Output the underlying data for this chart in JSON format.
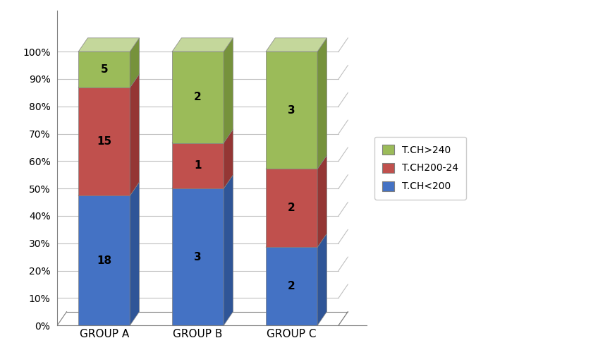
{
  "categories": [
    "GROUP A",
    "GROUP B",
    "GROUP C"
  ],
  "series": {
    "T.CH<200": [
      18,
      3,
      2
    ],
    "T.CH200-24": [
      15,
      1,
      2
    ],
    "T.CH>240": [
      5,
      2,
      3
    ]
  },
  "colors": {
    "T.CH<200": "#4472C4",
    "T.CH200-24": "#C0504D",
    "T.CH>240": "#9BBB59"
  },
  "colors_dark": {
    "T.CH<200": "#2F5597",
    "T.CH200-24": "#943634",
    "T.CH>240": "#76923C"
  },
  "colors_top": {
    "T.CH<200": "#6FA0DC",
    "T.CH200-24": "#D99694",
    "T.CH>240": "#C4D79B"
  },
  "legend_labels": [
    "T.CH>240",
    "T.CH200-24",
    "T.CH<200"
  ],
  "yticks": [
    0,
    10,
    20,
    30,
    40,
    50,
    60,
    70,
    80,
    90,
    100
  ],
  "ytick_labels": [
    "0%",
    "10%",
    "20%",
    "30%",
    "40%",
    "50%",
    "60%",
    "70%",
    "80%",
    "90%",
    "100%"
  ],
  "background_color": "#FFFFFF",
  "grid_color": "#C0C0C0"
}
